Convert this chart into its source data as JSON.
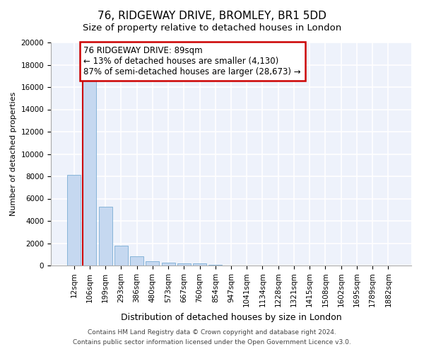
{
  "title": "76, RIDGEWAY DRIVE, BROMLEY, BR1 5DD",
  "subtitle": "Size of property relative to detached houses in London",
  "xlabel": "Distribution of detached houses by size in London",
  "ylabel": "Number of detached properties",
  "categories": [
    "12sqm",
    "106sqm",
    "199sqm",
    "293sqm",
    "386sqm",
    "480sqm",
    "573sqm",
    "667sqm",
    "760sqm",
    "854sqm",
    "947sqm",
    "1041sqm",
    "1134sqm",
    "1228sqm",
    "1321sqm",
    "1415sqm",
    "1508sqm",
    "1602sqm",
    "1695sqm",
    "1789sqm",
    "1882sqm"
  ],
  "values": [
    8100,
    16600,
    5300,
    1800,
    800,
    350,
    280,
    200,
    200,
    50,
    30,
    20,
    15,
    10,
    8,
    6,
    5,
    4,
    3,
    2,
    2
  ],
  "bar_color": "#c5d8f0",
  "bar_edge_color": "#7aadd4",
  "annotation_line1": "76 RIDGEWAY DRIVE: 89sqm",
  "annotation_line2": "← 13% of detached houses are smaller (4,130)",
  "annotation_line3": "87% of semi-detached houses are larger (28,673) →",
  "vline_color": "#cc0000",
  "vline_x": 0.5,
  "annotation_box_color": "#cc0000",
  "background_color": "#eef2fb",
  "grid_color": "#ffffff",
  "ylim": [
    0,
    20000
  ],
  "yticks": [
    0,
    2000,
    4000,
    6000,
    8000,
    10000,
    12000,
    14000,
    16000,
    18000,
    20000
  ],
  "footer_line1": "Contains HM Land Registry data © Crown copyright and database right 2024.",
  "footer_line2": "Contains public sector information licensed under the Open Government Licence v3.0.",
  "title_fontsize": 11,
  "subtitle_fontsize": 9.5,
  "xlabel_fontsize": 9,
  "ylabel_fontsize": 8,
  "tick_fontsize": 7.5,
  "annotation_fontsize": 8.5,
  "footer_fontsize": 6.5
}
